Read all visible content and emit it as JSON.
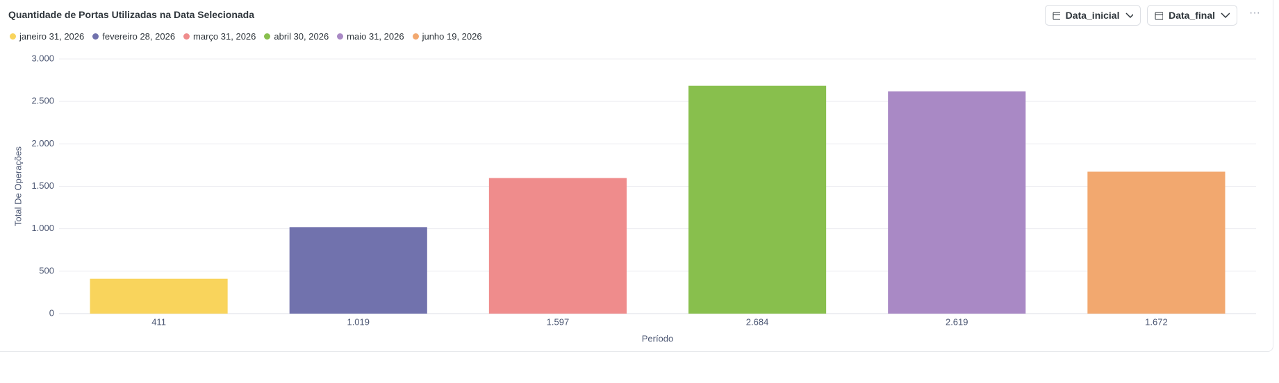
{
  "chart_data": {
    "type": "bar",
    "title": "Quantidade de Portas Utilizadas na Data Selecionada",
    "categories": [
      "janeiro 31, 2026",
      "fevereiro 28, 2026",
      "março 31, 2026",
      "abril 30, 2026",
      "maio 31, 2026",
      "junho 19, 2026"
    ],
    "values": [
      411,
      1019,
      1597,
      2684,
      2619,
      1672
    ],
    "value_labels": [
      "411",
      "1.019",
      "1.597",
      "2.684",
      "2.619",
      "1.672"
    ],
    "colors": [
      "#F9D45C",
      "#7172AD",
      "#EF8C8C",
      "#88BF4D",
      "#A989C5",
      "#F2A86F"
    ],
    "x_label": "Período",
    "y_label": "Total De Operações",
    "ylim": [
      0,
      3000
    ],
    "yticks": [
      0,
      500,
      {
        "value": 1000,
        "label": "1.000"
      },
      {
        "value": 1500,
        "label": "1.500"
      },
      {
        "value": 2000,
        "label": "2.000"
      },
      {
        "value": 2500,
        "label": "2.500"
      },
      {
        "value": 3000,
        "label": "3.000"
      }
    ],
    "grid": true
  },
  "controls": {
    "start_filter": "Data_inicial",
    "end_filter": "Data_final",
    "menu": "···"
  }
}
